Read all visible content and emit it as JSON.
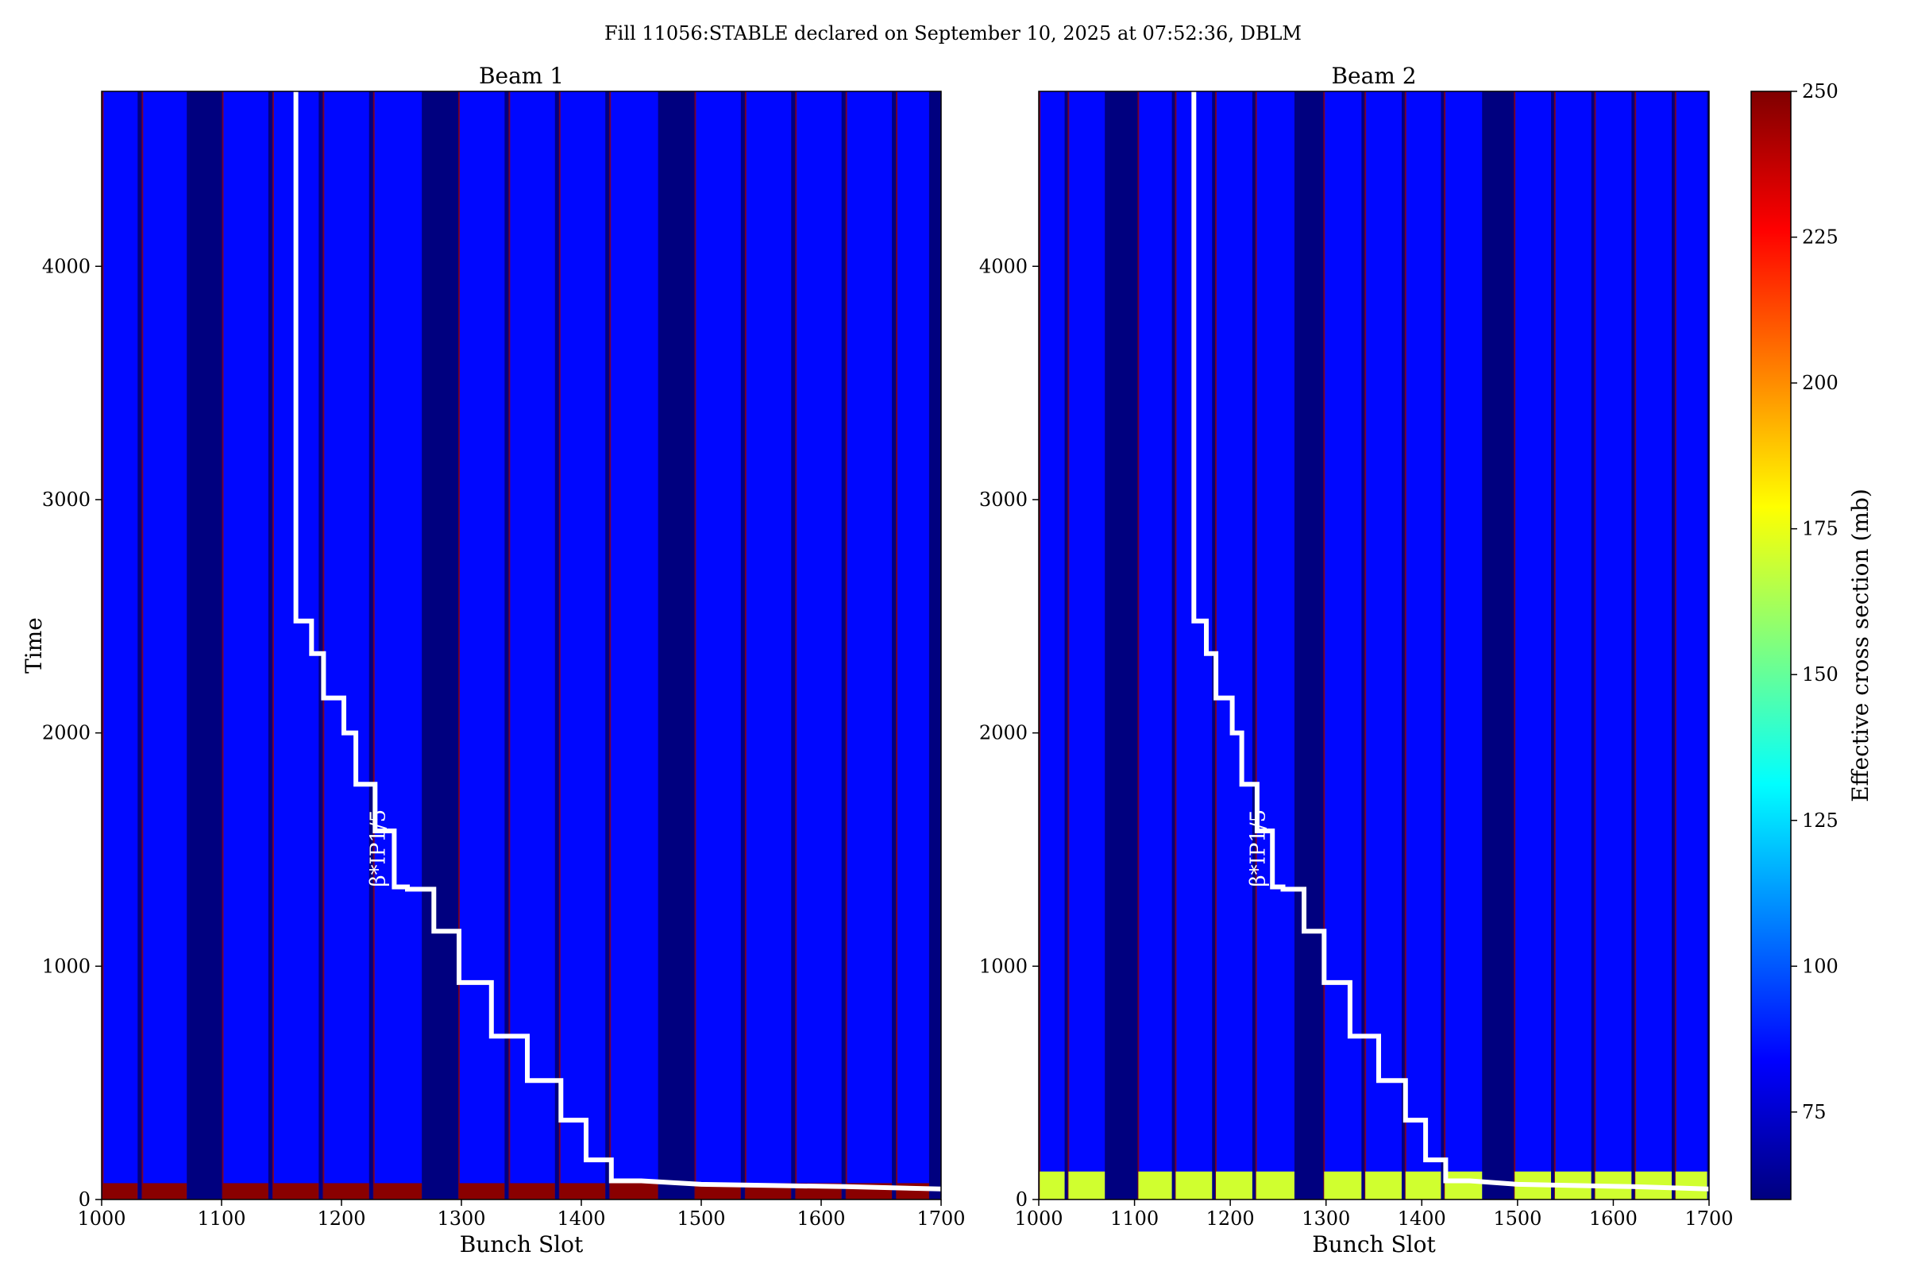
{
  "figure": {
    "suptitle": "Fill 11056:STABLE declared on September 10, 2025 at 07:52:36, DBLM"
  },
  "colorbar": {
    "label": "Effective cross section (mb)",
    "range": [
      60,
      250
    ],
    "ticks": [
      "75",
      "100",
      "125",
      "150",
      "175",
      "200",
      "225",
      "250"
    ],
    "tick_values": [
      75,
      100,
      125,
      150,
      175,
      200,
      225,
      250
    ],
    "colormap": "jet",
    "stops": [
      "#00007f",
      "#0000ff",
      "#007fff",
      "#00ffff",
      "#7fff7f",
      "#ffff00",
      "#ff7f00",
      "#ff0000",
      "#7f0000"
    ]
  },
  "chart_data": [
    {
      "type": "heatmap",
      "title": "Beam 1",
      "xlabel": "Bunch Slot",
      "ylabel": "Time",
      "xlim": [
        1000,
        1700
      ],
      "ylim": [
        0,
        4750
      ],
      "xticks": [
        "1000",
        "1100",
        "1200",
        "1300",
        "1400",
        "1500",
        "1600",
        "1700"
      ],
      "xtick_values": [
        1000,
        1100,
        1200,
        1300,
        1400,
        1500,
        1600,
        1700
      ],
      "yticks": [
        "0",
        "1000",
        "2000",
        "3000",
        "4000"
      ],
      "ytick_values": [
        0,
        1000,
        2000,
        3000,
        4000
      ],
      "background_color": "#00007f",
      "filled_trains": [
        [
          1001,
          1030
        ],
        [
          1034,
          1071
        ],
        [
          1101,
          1139
        ],
        [
          1143,
          1181
        ],
        [
          1185,
          1223
        ],
        [
          1227,
          1267
        ],
        [
          1298,
          1336
        ],
        [
          1340,
          1378
        ],
        [
          1382,
          1420
        ],
        [
          1424,
          1464
        ],
        [
          1495,
          1533
        ],
        [
          1537,
          1575
        ],
        [
          1579,
          1617
        ],
        [
          1621,
          1659
        ],
        [
          1663,
          1690
        ]
      ],
      "train_value": 85,
      "edge_value": 245,
      "low_time_band": {
        "t_max": 70,
        "value": 248
      },
      "annotation": {
        "text": "β*IP1/5",
        "at": [
          1236,
          1340
        ],
        "rotation": 90
      },
      "beta_star_step_line": {
        "color": "#ffffff",
        "points": [
          [
            1162,
            4750
          ],
          [
            1162,
            2480
          ],
          [
            1175,
            2480
          ],
          [
            1175,
            2340
          ],
          [
            1185,
            2340
          ],
          [
            1185,
            2150
          ],
          [
            1202,
            2150
          ],
          [
            1202,
            2000
          ],
          [
            1212,
            2000
          ],
          [
            1212,
            1780
          ],
          [
            1228,
            1780
          ],
          [
            1228,
            1580
          ],
          [
            1244,
            1580
          ],
          [
            1244,
            1340
          ],
          [
            1255,
            1340
          ],
          [
            1255,
            1330
          ],
          [
            1277,
            1330
          ],
          [
            1277,
            1150
          ],
          [
            1298,
            1150
          ],
          [
            1298,
            930
          ],
          [
            1325,
            930
          ],
          [
            1325,
            700
          ],
          [
            1355,
            700
          ],
          [
            1355,
            510
          ],
          [
            1383,
            510
          ],
          [
            1383,
            340
          ],
          [
            1404,
            340
          ],
          [
            1404,
            170
          ],
          [
            1425,
            170
          ],
          [
            1425,
            80
          ],
          [
            1450,
            80
          ],
          [
            1500,
            65
          ],
          [
            1560,
            60
          ],
          [
            1620,
            55
          ],
          [
            1700,
            45
          ]
        ]
      }
    },
    {
      "type": "heatmap",
      "title": "Beam 2",
      "xlabel": "Bunch Slot",
      "ylabel": "",
      "xlim": [
        1000,
        1700
      ],
      "ylim": [
        0,
        4750
      ],
      "xticks": [
        "1000",
        "1100",
        "1200",
        "1300",
        "1400",
        "1500",
        "1600",
        "1700"
      ],
      "xtick_values": [
        1000,
        1100,
        1200,
        1300,
        1400,
        1500,
        1600,
        1700
      ],
      "yticks": [
        "0",
        "1000",
        "2000",
        "3000",
        "4000"
      ],
      "ytick_values": [
        0,
        1000,
        2000,
        3000,
        4000
      ],
      "background_color": "#00007f",
      "filled_trains": [
        [
          1001,
          1027
        ],
        [
          1031,
          1069
        ],
        [
          1104,
          1139
        ],
        [
          1143,
          1181
        ],
        [
          1185,
          1223
        ],
        [
          1227,
          1267
        ],
        [
          1298,
          1337
        ],
        [
          1341,
          1379
        ],
        [
          1383,
          1420
        ],
        [
          1424,
          1463
        ],
        [
          1497,
          1535
        ],
        [
          1539,
          1577
        ],
        [
          1581,
          1619
        ],
        [
          1623,
          1661
        ],
        [
          1665,
          1698
        ]
      ],
      "train_value": 85,
      "edge_value": 245,
      "low_time_band": {
        "t_max": 120,
        "value": 170
      },
      "annotation": {
        "text": "β*IP1/5",
        "at": [
          1236,
          1340
        ],
        "rotation": 90
      },
      "beta_star_step_line": {
        "color": "#ffffff",
        "points": [
          [
            1162,
            4750
          ],
          [
            1162,
            2480
          ],
          [
            1175,
            2480
          ],
          [
            1175,
            2340
          ],
          [
            1185,
            2340
          ],
          [
            1185,
            2150
          ],
          [
            1202,
            2150
          ],
          [
            1202,
            2000
          ],
          [
            1212,
            2000
          ],
          [
            1212,
            1780
          ],
          [
            1228,
            1780
          ],
          [
            1228,
            1580
          ],
          [
            1244,
            1580
          ],
          [
            1244,
            1340
          ],
          [
            1255,
            1340
          ],
          [
            1255,
            1330
          ],
          [
            1277,
            1330
          ],
          [
            1277,
            1150
          ],
          [
            1298,
            1150
          ],
          [
            1298,
            930
          ],
          [
            1325,
            930
          ],
          [
            1325,
            700
          ],
          [
            1355,
            700
          ],
          [
            1355,
            510
          ],
          [
            1383,
            510
          ],
          [
            1383,
            340
          ],
          [
            1404,
            340
          ],
          [
            1404,
            170
          ],
          [
            1425,
            170
          ],
          [
            1425,
            80
          ],
          [
            1450,
            80
          ],
          [
            1500,
            65
          ],
          [
            1560,
            60
          ],
          [
            1620,
            55
          ],
          [
            1700,
            45
          ]
        ]
      }
    }
  ]
}
